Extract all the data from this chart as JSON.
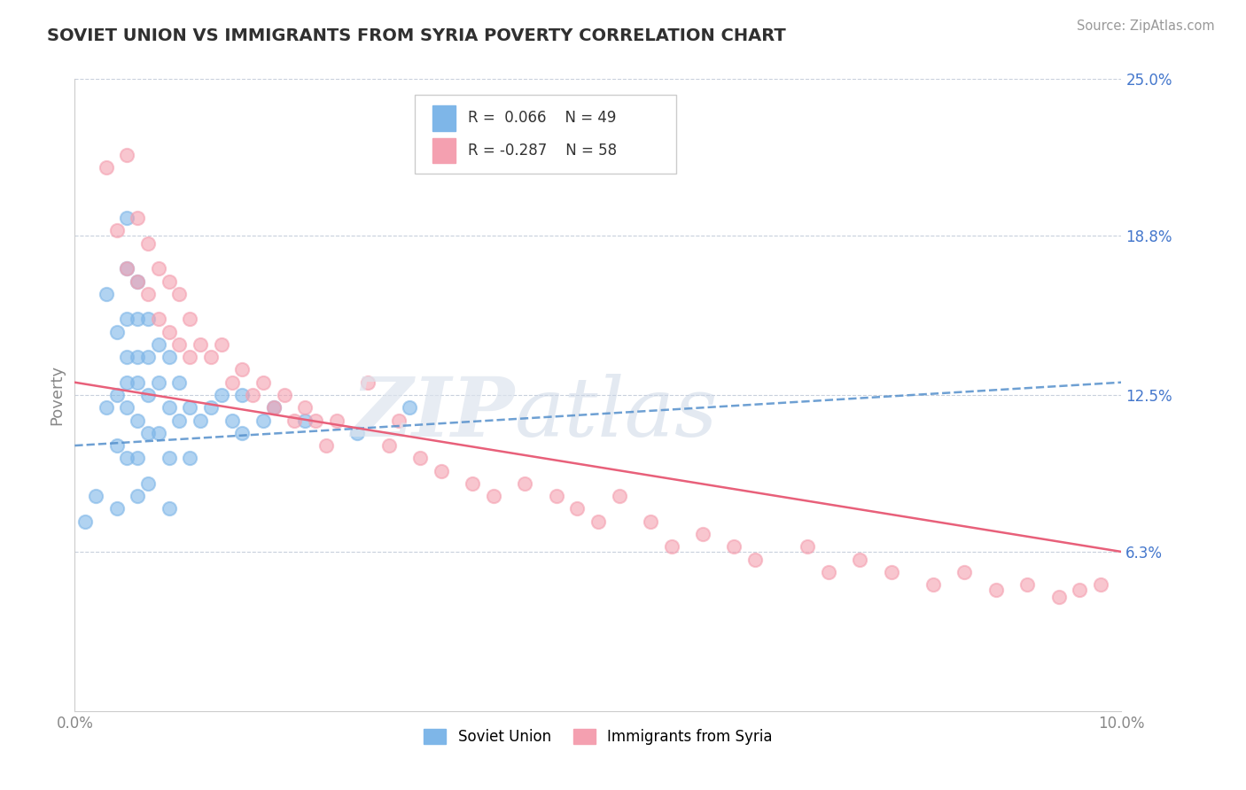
{
  "title": "SOVIET UNION VS IMMIGRANTS FROM SYRIA POVERTY CORRELATION CHART",
  "source": "Source: ZipAtlas.com",
  "ylabel": "Poverty",
  "xlim": [
    0.0,
    0.1
  ],
  "ylim": [
    0.0,
    0.25
  ],
  "ytick_vals": [
    0.063,
    0.125,
    0.188,
    0.25
  ],
  "ytick_labels": [
    "6.3%",
    "12.5%",
    "18.8%",
    "25.0%"
  ],
  "xtick_vals": [
    0.0,
    0.1
  ],
  "xtick_labels": [
    "0.0%",
    "10.0%"
  ],
  "soviet_R": 0.066,
  "soviet_N": 49,
  "syria_R": -0.287,
  "syria_N": 58,
  "soviet_color": "#7eb6e8",
  "syria_color": "#f4a0b0",
  "soviet_line_color": "#5590cc",
  "syria_line_color": "#e8607a",
  "background_color": "#ffffff",
  "grid_color": "#c8d0dc",
  "title_color": "#303030",
  "label_color": "#4477cc",
  "axis_color": "#888888",
  "su_x": [
    0.001,
    0.002,
    0.003,
    0.003,
    0.004,
    0.004,
    0.004,
    0.004,
    0.005,
    0.005,
    0.005,
    0.005,
    0.005,
    0.005,
    0.005,
    0.006,
    0.006,
    0.006,
    0.006,
    0.006,
    0.006,
    0.006,
    0.007,
    0.007,
    0.007,
    0.007,
    0.007,
    0.008,
    0.008,
    0.008,
    0.009,
    0.009,
    0.009,
    0.009,
    0.01,
    0.01,
    0.011,
    0.011,
    0.012,
    0.013,
    0.014,
    0.015,
    0.016,
    0.016,
    0.018,
    0.019,
    0.022,
    0.027,
    0.032
  ],
  "su_y": [
    0.075,
    0.085,
    0.165,
    0.12,
    0.15,
    0.125,
    0.105,
    0.08,
    0.195,
    0.175,
    0.155,
    0.14,
    0.13,
    0.12,
    0.1,
    0.17,
    0.155,
    0.14,
    0.13,
    0.115,
    0.1,
    0.085,
    0.155,
    0.14,
    0.125,
    0.11,
    0.09,
    0.145,
    0.13,
    0.11,
    0.14,
    0.12,
    0.1,
    0.08,
    0.13,
    0.115,
    0.12,
    0.1,
    0.115,
    0.12,
    0.125,
    0.115,
    0.125,
    0.11,
    0.115,
    0.12,
    0.115,
    0.11,
    0.12
  ],
  "sy_x": [
    0.003,
    0.004,
    0.005,
    0.005,
    0.006,
    0.006,
    0.007,
    0.007,
    0.008,
    0.008,
    0.009,
    0.009,
    0.01,
    0.01,
    0.011,
    0.011,
    0.012,
    0.013,
    0.014,
    0.015,
    0.016,
    0.017,
    0.018,
    0.019,
    0.02,
    0.021,
    0.022,
    0.023,
    0.024,
    0.025,
    0.028,
    0.03,
    0.031,
    0.033,
    0.035,
    0.038,
    0.04,
    0.043,
    0.046,
    0.048,
    0.05,
    0.052,
    0.055,
    0.057,
    0.06,
    0.063,
    0.065,
    0.07,
    0.072,
    0.075,
    0.078,
    0.082,
    0.085,
    0.088,
    0.091,
    0.094,
    0.096,
    0.098
  ],
  "sy_y": [
    0.215,
    0.19,
    0.22,
    0.175,
    0.195,
    0.17,
    0.185,
    0.165,
    0.175,
    0.155,
    0.17,
    0.15,
    0.165,
    0.145,
    0.155,
    0.14,
    0.145,
    0.14,
    0.145,
    0.13,
    0.135,
    0.125,
    0.13,
    0.12,
    0.125,
    0.115,
    0.12,
    0.115,
    0.105,
    0.115,
    0.13,
    0.105,
    0.115,
    0.1,
    0.095,
    0.09,
    0.085,
    0.09,
    0.085,
    0.08,
    0.075,
    0.085,
    0.075,
    0.065,
    0.07,
    0.065,
    0.06,
    0.065,
    0.055,
    0.06,
    0.055,
    0.05,
    0.055,
    0.048,
    0.05,
    0.045,
    0.048,
    0.05
  ],
  "soviet_line_x0": 0.0,
  "soviet_line_x1": 0.1,
  "soviet_line_y0": 0.105,
  "soviet_line_y1": 0.13,
  "syria_line_x0": 0.0,
  "syria_line_x1": 0.1,
  "syria_line_y0": 0.13,
  "syria_line_y1": 0.063
}
